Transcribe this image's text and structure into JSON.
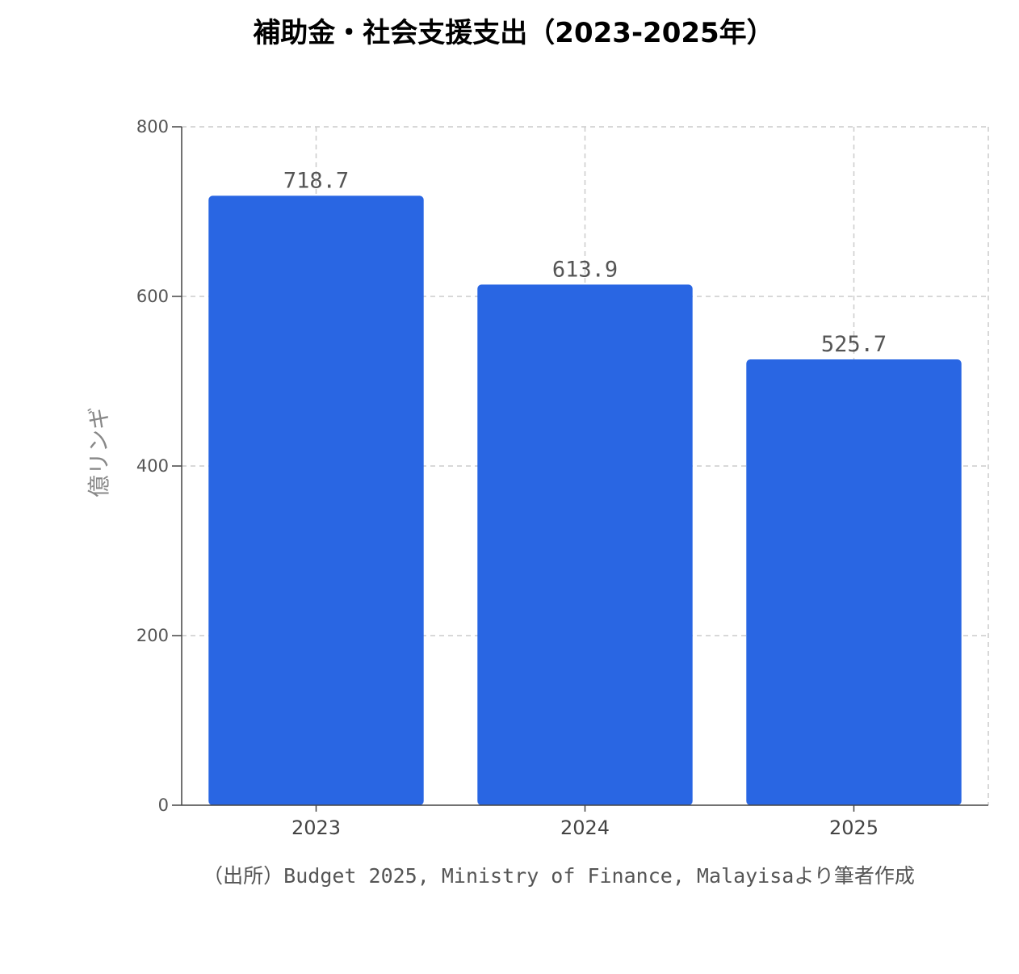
{
  "chart_data": {
    "type": "bar",
    "title": "補助金・社会支援支出（2023-2025年）",
    "categories": [
      "2023",
      "2024",
      "2025"
    ],
    "values": [
      718.7,
      613.9,
      525.7
    ],
    "data_labels": [
      "718.7",
      "613.9",
      "525.7"
    ],
    "ylabel": "億リンギ",
    "xlabel": "",
    "ylim": [
      0,
      800
    ],
    "yticks": [
      0,
      200,
      400,
      600,
      800
    ],
    "ytick_labels": [
      "0",
      "200",
      "400",
      "600",
      "800"
    ],
    "grid": true,
    "bar_color": "#2966e3"
  },
  "source_note": "（出所）Budget 2025, Ministry of Finance, Malayisaより筆者作成"
}
